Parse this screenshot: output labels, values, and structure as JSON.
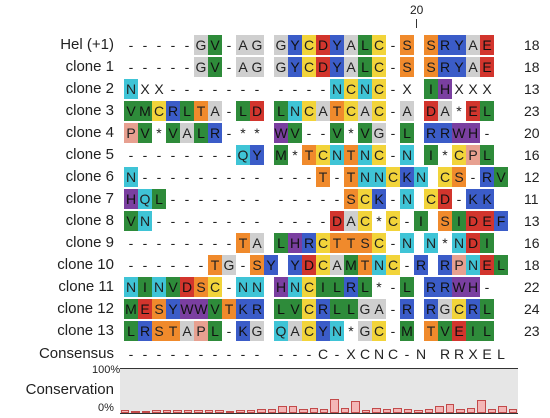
{
  "position_marker": "20",
  "rows": [
    {
      "label": "Hel (+1)",
      "count": "18",
      "seq": "-----GV-AG GYCDYALC-S SRYAE"
    },
    {
      "label": "clone 1",
      "count": "18",
      "seq": "-----GV-AG GYCDYALC-S SRYAE"
    },
    {
      "label": "clone 2",
      "count": "13",
      "seq": "NXX------- ----NCNC-X IHXXX"
    },
    {
      "label": "clone 3",
      "count": "23",
      "seq": "VMCRLTA-LD LNCATCAC-A DA*EL"
    },
    {
      "label": "clone 4",
      "count": "20",
      "seq": "PV*VALR-** WV--V*VG-L RRWH-"
    },
    {
      "label": "clone 5",
      "count": "16",
      "seq": "--------QY M*TCNTNC-N I*CPL"
    },
    {
      "label": "clone 6",
      "count": "12",
      "seq": "N--------- ---T-TNNCKN CS-RV"
    },
    {
      "label": "clone 7",
      "count": "11",
      "seq": "HQL------- -----SCK-N CD-KK"
    },
    {
      "label": "clone 8",
      "count": "13",
      "seq": "VN-------- ----DAC*C-I SIDEF"
    },
    {
      "label": "clone 9",
      "count": "16",
      "seq": "--------TA LHRCTTSC-N N*NDI"
    },
    {
      "label": "clone 10",
      "count": "18",
      "seq": "------TG-SY YDCAMTNC-R RPNEL"
    },
    {
      "label": "clone 11",
      "count": "22",
      "seq": "NINVDSC-NN HNCILRL*-L RRWH-"
    },
    {
      "label": "clone 12",
      "count": "24",
      "seq": "MESYWWVTKR LVCRLLGA-R RGCRL"
    },
    {
      "label": "clone 13",
      "count": "23",
      "seq": "LRSTAPL-KG QACYN*GC-M TVEIL"
    }
  ],
  "consensus": {
    "label": "Consensus",
    "seq": "---------- ---C-XCNC-N RRXEL"
  },
  "conservation": {
    "label": "Conservation",
    "tick_top": "100%",
    "tick_bottom": "0%",
    "values": [
      0.06,
      0.05,
      0.05,
      0.06,
      0.06,
      0.07,
      0.07,
      0.06,
      0.06,
      0.07,
      0.05,
      0.06,
      0.07,
      0.09,
      0.08,
      0.15,
      0.15,
      0.08,
      0.11,
      0.1,
      0.32,
      0.12,
      0.28,
      0.07,
      0.11,
      0.1,
      0.11,
      0.09,
      0.06,
      0.1,
      0.17,
      0.21,
      0.08,
      0.11,
      0.3,
      0.1,
      0.15,
      0.1
    ]
  },
  "colors": {
    "gray": "#cfcfcf",
    "green": "#2e8b3a",
    "yellow": "#f2d43a",
    "blue": "#3b5cc8",
    "red": "#d2352d",
    "orange": "#f08a2c",
    "cyan": "#3fc4d6",
    "purple": "#7a3fa0",
    "pink": "#d88080",
    "salmon": "#e7a090"
  }
}
